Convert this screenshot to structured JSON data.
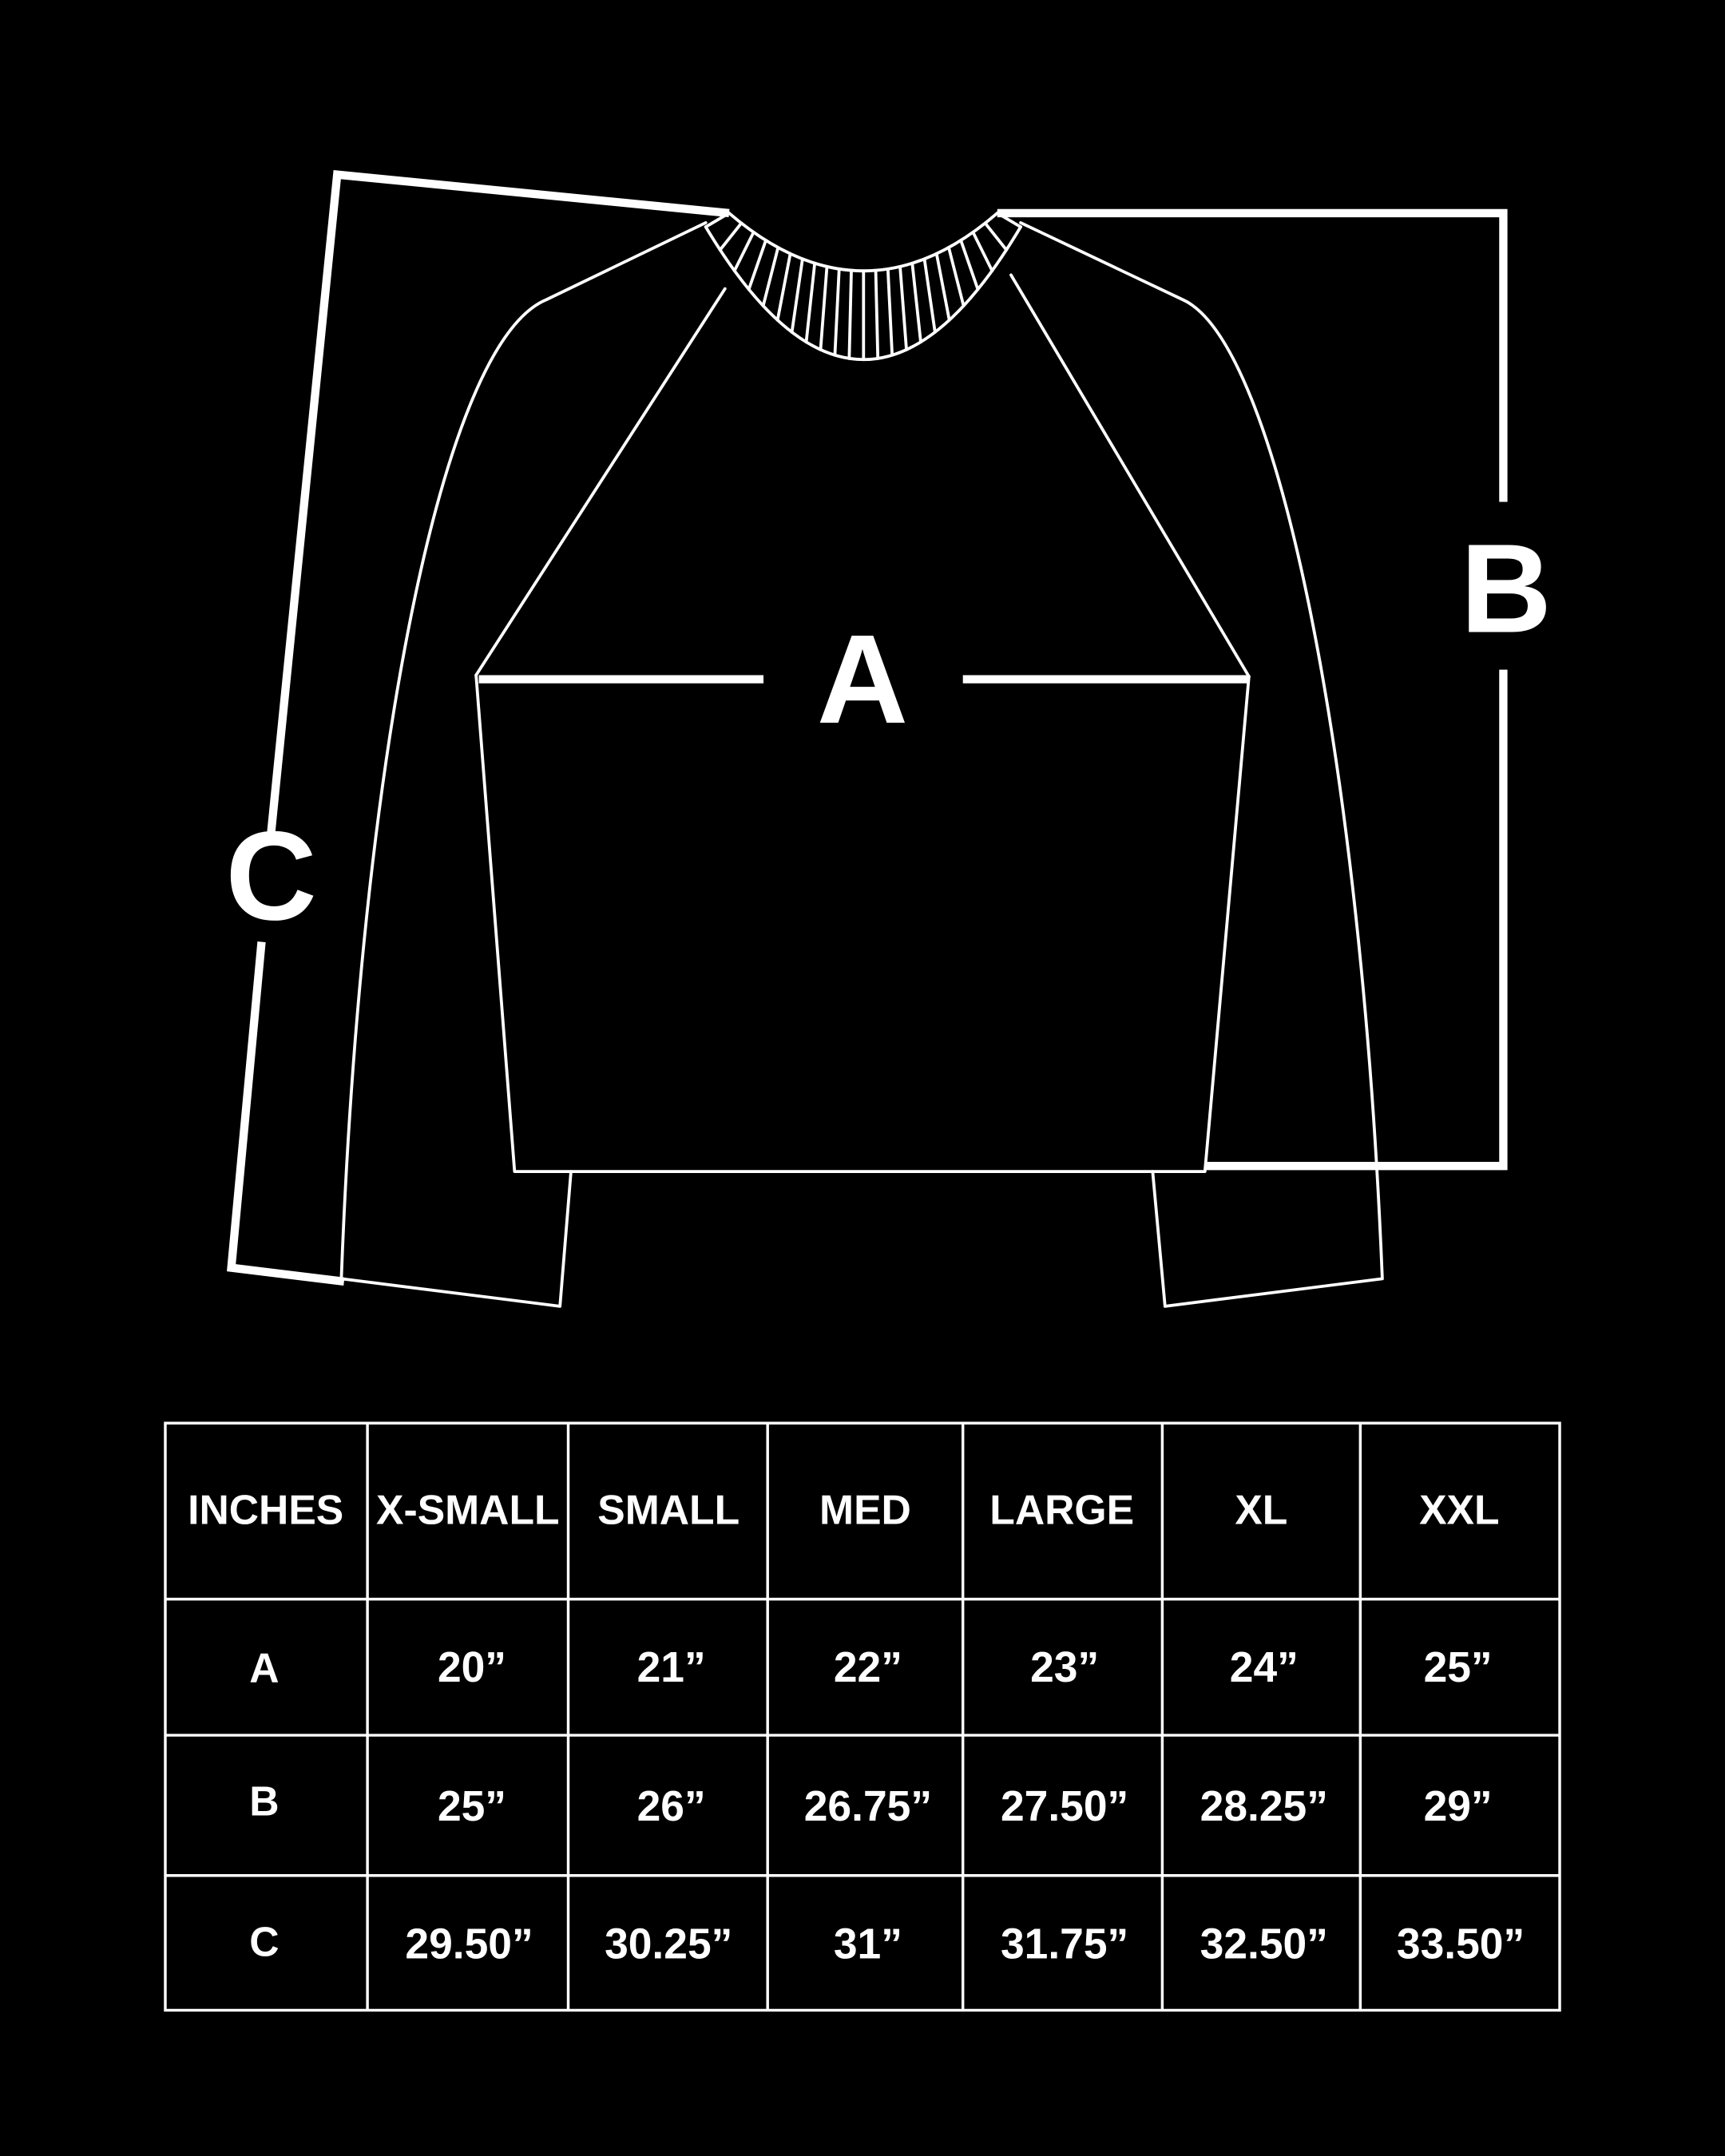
{
  "diagram": {
    "labels": {
      "a": "A",
      "b": "B",
      "c": "C"
    },
    "colors": {
      "background": "#000000",
      "line": "#ffffff"
    }
  },
  "table": {
    "headers": [
      "INCHES",
      "X-SMALL",
      "SMALL",
      "MED",
      "LARGE",
      "XL",
      "XXL"
    ],
    "rows": [
      {
        "label": "A",
        "values": [
          "20”",
          "21”",
          "22”",
          "23”",
          "24”",
          "25”"
        ]
      },
      {
        "label": "B",
        "values": [
          "25”",
          "26”",
          "26.75”",
          "27.50”",
          "28.25”",
          "29”"
        ]
      },
      {
        "label": "C",
        "values": [
          "29.50”",
          "30.25”",
          "31”",
          "31.75”",
          "32.50”",
          "33.50”"
        ]
      }
    ]
  }
}
